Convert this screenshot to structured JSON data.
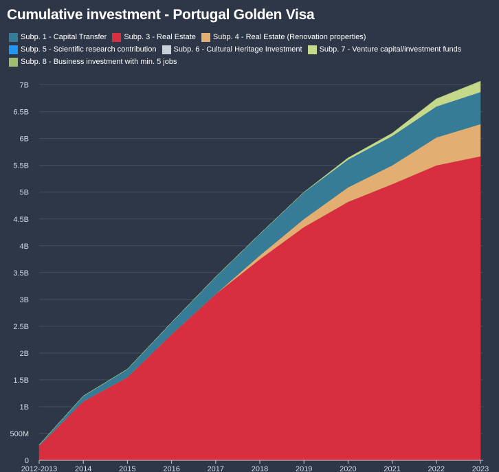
{
  "chart_data": {
    "type": "area",
    "stacked": true,
    "title": "Cumulative investment - Portugal Golden Visa",
    "categories": [
      "2012-2013",
      "2014",
      "2015",
      "2016",
      "2017",
      "2018",
      "2019",
      "2020",
      "2021",
      "2022",
      "2023"
    ],
    "y_tick_labels": [
      "0",
      "500M",
      "1B",
      "1.5B",
      "2B",
      "2.5B",
      "3B",
      "3.5B",
      "4B",
      "4.5B",
      "5B",
      "5.5B",
      "6B",
      "6.5B",
      "7B"
    ],
    "ylim": [
      0,
      7.2
    ],
    "y_unit": "billions",
    "grid": true,
    "legend_position": "top",
    "series": [
      {
        "name": "Subp. 3 - Real Estate",
        "color": "#d72f3f",
        "values": [
          0.27,
          1.1,
          1.55,
          2.35,
          3.1,
          3.75,
          4.35,
          4.82,
          5.15,
          5.5,
          5.67
        ]
      },
      {
        "name": "Subp. 4 - Real Estate (Renovation properties)",
        "color": "#e3ae72",
        "values": [
          0,
          0,
          0,
          0,
          0,
          0.07,
          0.15,
          0.27,
          0.35,
          0.52,
          0.6
        ]
      },
      {
        "name": "Subp. 1 - Capital Transfer",
        "color": "#367c96",
        "values": [
          0.02,
          0.1,
          0.15,
          0.22,
          0.32,
          0.4,
          0.5,
          0.52,
          0.55,
          0.58,
          0.6
        ]
      },
      {
        "name": "Subp. 5 - Scientific research contribution",
        "color": "#2196f3",
        "values": [
          0,
          0,
          0,
          0,
          0,
          0,
          0,
          0,
          0,
          0,
          0
        ]
      },
      {
        "name": "Subp. 6 - Cultural Heritage Investment",
        "color": "#c9d0d8",
        "values": [
          0,
          0,
          0,
          0,
          0,
          0,
          0,
          0,
          0,
          0,
          0
        ]
      },
      {
        "name": "Subp. 7 - Venture capital/investment funds",
        "color": "#c6d98a",
        "values": [
          0,
          0,
          0,
          0,
          0,
          0,
          0,
          0.03,
          0.05,
          0.14,
          0.2
        ]
      },
      {
        "name": "Subp. 8 - Business investment with min. 5 jobs",
        "color": "#9ebd6e",
        "values": [
          0,
          0,
          0,
          0,
          0,
          0,
          0,
          0,
          0,
          0,
          0
        ]
      }
    ],
    "legend_order": [
      "Subp. 1 - Capital Transfer",
      "Subp. 3 - Real Estate",
      "Subp. 4 - Real Estate (Renovation properties)",
      "Subp. 5 - Scientific research contribution",
      "Subp. 6 - Cultural Heritage Investment",
      "Subp. 7 - Venture capital/investment funds",
      "Subp. 8 - Business investment with min. 5 jobs"
    ]
  }
}
